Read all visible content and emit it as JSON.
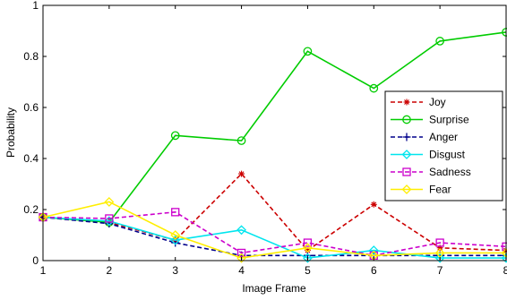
{
  "chart_data": {
    "type": "line",
    "title": "",
    "xlabel": "Image Frame",
    "ylabel": "Probability",
    "xlim": [
      1,
      8
    ],
    "ylim": [
      0,
      1
    ],
    "x_ticks": [
      1,
      2,
      3,
      4,
      5,
      6,
      7,
      8
    ],
    "y_ticks": [
      0,
      0.2,
      0.4,
      0.6,
      0.8,
      1
    ],
    "y_tick_labels": [
      "0",
      "0.2",
      "0.4",
      "0.6",
      "0.8",
      "1"
    ],
    "grid": false,
    "legend_position": "right",
    "x": [
      1,
      2,
      3,
      4,
      5,
      6,
      7,
      8
    ],
    "series": [
      {
        "name": "Joy",
        "color": "#cc0000",
        "dash": "dashed",
        "marker": "star",
        "values": [
          0.17,
          0.15,
          0.08,
          0.34,
          0.04,
          0.22,
          0.05,
          0.04
        ]
      },
      {
        "name": "Surprise",
        "color": "#00cc00",
        "dash": "solid",
        "marker": "circle",
        "values": [
          0.17,
          0.15,
          0.49,
          0.47,
          0.82,
          0.675,
          0.86,
          0.895
        ]
      },
      {
        "name": "Anger",
        "color": "#00008b",
        "dash": "dashed",
        "marker": "plus",
        "values": [
          0.17,
          0.145,
          0.07,
          0.02,
          0.02,
          0.02,
          0.02,
          0.02
        ]
      },
      {
        "name": "Disgust",
        "color": "#00e5ee",
        "dash": "solid",
        "marker": "diamond",
        "values": [
          0.17,
          0.155,
          0.08,
          0.12,
          0.01,
          0.04,
          0.01,
          0.01
        ]
      },
      {
        "name": "Sadness",
        "color": "#cc00cc",
        "dash": "dashed",
        "marker": "square",
        "values": [
          0.17,
          0.165,
          0.19,
          0.03,
          0.07,
          0.02,
          0.07,
          0.055
        ]
      },
      {
        "name": "Fear",
        "color": "#ffee00",
        "dash": "solid",
        "marker": "diamond",
        "values": [
          0.17,
          0.23,
          0.1,
          0.01,
          0.05,
          0.02,
          0.03,
          0.03
        ]
      }
    ]
  }
}
